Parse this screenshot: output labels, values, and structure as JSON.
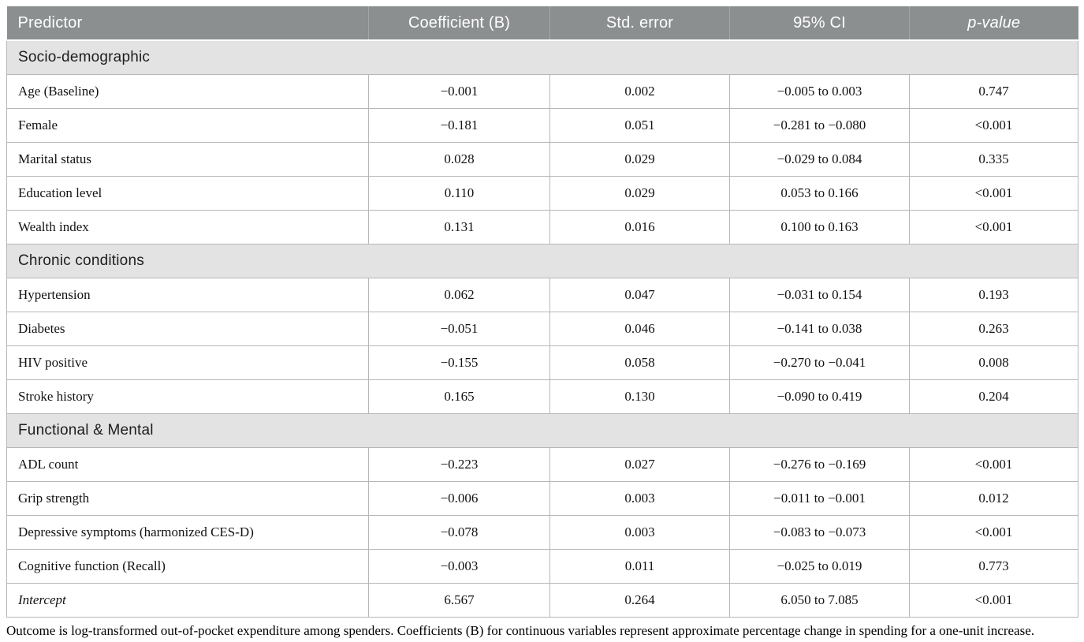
{
  "colors": {
    "header_bg": "#8b8f90",
    "header_text": "#ffffff",
    "header_divider": "#a4a7a8",
    "section_bg": "#e2e3e2",
    "border": "#b7b7b7"
  },
  "table": {
    "columns": [
      "Predictor",
      "Coefficient (B)",
      "Std. error",
      "95% CI",
      "p-value"
    ],
    "sections": [
      {
        "title": "Socio-demographic",
        "rows": [
          {
            "label": "Age (Baseline)",
            "cells": [
              "−0.001",
              "0.002",
              "−0.005 to 0.003",
              "0.747"
            ]
          },
          {
            "label": "Female",
            "cells": [
              "−0.181",
              "0.051",
              "−0.281 to −0.080",
              "<0.001"
            ]
          },
          {
            "label": "Marital status",
            "cells": [
              "0.028",
              "0.029",
              "−0.029 to 0.084",
              "0.335"
            ]
          },
          {
            "label": "Education level",
            "cells": [
              "0.110",
              "0.029",
              "0.053 to 0.166",
              "<0.001"
            ]
          },
          {
            "label": "Wealth index",
            "cells": [
              "0.131",
              "0.016",
              "0.100 to 0.163",
              "<0.001"
            ]
          }
        ]
      },
      {
        "title": "Chronic conditions",
        "rows": [
          {
            "label": "Hypertension",
            "cells": [
              "0.062",
              "0.047",
              "−0.031 to 0.154",
              "0.193"
            ]
          },
          {
            "label": "Diabetes",
            "cells": [
              "−0.051",
              "0.046",
              "−0.141 to 0.038",
              "0.263"
            ]
          },
          {
            "label": "HIV positive",
            "cells": [
              "−0.155",
              "0.058",
              "−0.270 to −0.041",
              "0.008"
            ]
          },
          {
            "label": "Stroke history",
            "cells": [
              "0.165",
              "0.130",
              "−0.090 to 0.419",
              "0.204"
            ]
          }
        ]
      },
      {
        "title": "Functional & Mental",
        "rows": [
          {
            "label": "ADL count",
            "cells": [
              "−0.223",
              "0.027",
              "−0.276 to −0.169",
              "<0.001"
            ]
          },
          {
            "label": "Grip strength",
            "cells": [
              "−0.006",
              "0.003",
              "−0.011 to −0.001",
              "0.012"
            ]
          },
          {
            "label": "Depressive symptoms (harmonized CES-D)",
            "cells": [
              "−0.078",
              "0.003",
              "−0.083 to −0.073",
              "<0.001"
            ]
          },
          {
            "label": "Cognitive function (Recall)",
            "cells": [
              "−0.003",
              "0.011",
              "−0.025 to 0.019",
              "0.773"
            ]
          },
          {
            "label": "Intercept",
            "italic": true,
            "cells": [
              "6.567",
              "0.264",
              "6.050 to 7.085",
              "<0.001"
            ]
          }
        ]
      }
    ]
  },
  "footnote": "Outcome is log-transformed out-of-pocket expenditure among spenders. Coefficients (B) for continuous variables represent approximate percentage change in spending for a one-unit increase."
}
